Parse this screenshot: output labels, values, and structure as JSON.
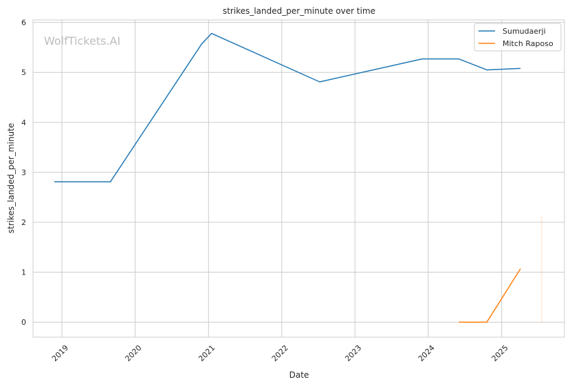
{
  "watermark": "WolfTickets.AI",
  "chart_data": {
    "type": "line",
    "title": "strikes_landed_per_minute over time",
    "xlabel": "Date",
    "ylabel": "strikes_landed_per_minute",
    "x_tick_labels": [
      "2019",
      "2020",
      "2021",
      "2022",
      "2023",
      "2024",
      "2025"
    ],
    "y_tick_labels": [
      "0",
      "1",
      "2",
      "3",
      "4",
      "5",
      "6"
    ],
    "xlim": [
      "2018-08-10",
      "2025-11-10"
    ],
    "ylim": [
      -0.3,
      6.05
    ],
    "grid": true,
    "legend_position": "top-right",
    "series": [
      {
        "name": "Sumudaerji",
        "color": "#1f77b4",
        "points": [
          {
            "x": "2018-11-24",
            "y": 2.81
          },
          {
            "x": "2019-08-31",
            "y": 2.81
          },
          {
            "x": "2020-11-28",
            "y": 5.57
          },
          {
            "x": "2021-01-16",
            "y": 5.78
          },
          {
            "x": "2022-07-09",
            "y": 4.81
          },
          {
            "x": "2023-12-02",
            "y": 5.27
          },
          {
            "x": "2024-06-01",
            "y": 5.27
          },
          {
            "x": "2024-10-19",
            "y": 5.05
          },
          {
            "x": "2025-04-05",
            "y": 5.08
          }
        ]
      },
      {
        "name": "Mitch Raposo",
        "color": "#ff7f0e",
        "points": [
          {
            "x": "2024-06-01",
            "y": 0.0
          },
          {
            "x": "2024-10-19",
            "y": 0.0
          },
          {
            "x": "2025-04-05",
            "y": 1.07
          }
        ]
      }
    ]
  }
}
